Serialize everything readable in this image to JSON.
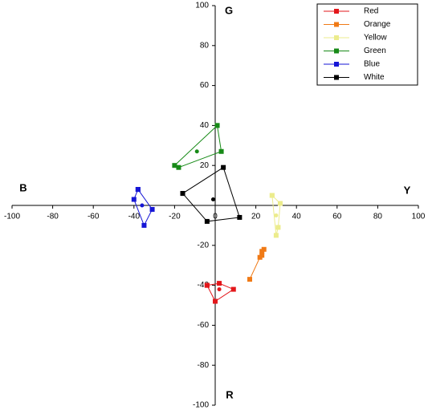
{
  "chart_data": {
    "type": "scatter",
    "axis_labels": {
      "top": "G",
      "bottom": "R",
      "left": "B",
      "right": "Y"
    },
    "xlim": [
      -100,
      100
    ],
    "ylim": [
      -100,
      100
    ],
    "xticks": [
      -100,
      -80,
      -60,
      -40,
      -20,
      0,
      20,
      40,
      60,
      80,
      100
    ],
    "yticks": [
      -100,
      -80,
      -60,
      -40,
      -20,
      20,
      40,
      60,
      80,
      100
    ],
    "legend": "top-right",
    "series": [
      {
        "name": "Red",
        "color": "#e3171b",
        "x": [
          -4,
          2,
          9,
          0,
          -4
        ],
        "y": [
          -40,
          -39,
          -42,
          -48,
          -40
        ],
        "center": [
          2,
          -42
        ]
      },
      {
        "name": "Orange",
        "color": "#f07a16",
        "x": [
          17,
          22,
          23,
          24,
          23
        ],
        "y": [
          -37,
          -26,
          -25,
          -22,
          -23
        ],
        "center": [
          22,
          -26
        ]
      },
      {
        "name": "Yellow",
        "color": "#ecec8c",
        "x": [
          28,
          32,
          31,
          30,
          28
        ],
        "y": [
          5,
          1,
          -11,
          -15,
          5
        ],
        "center": [
          30,
          -5
        ]
      },
      {
        "name": "Green",
        "color": "#178a17",
        "x": [
          1,
          3,
          -18,
          -20,
          1
        ],
        "y": [
          40,
          27,
          19,
          20,
          40
        ],
        "center": [
          -9,
          27
        ]
      },
      {
        "name": "Blue",
        "color": "#1616d6",
        "x": [
          -38,
          -31,
          -35,
          -40,
          -38
        ],
        "y": [
          8,
          -2,
          -10,
          3,
          8
        ],
        "center": [
          -36,
          0
        ]
      },
      {
        "name": "White",
        "color": "#000000",
        "x": [
          -16,
          4,
          12,
          -4,
          -16
        ],
        "y": [
          6,
          19,
          -6,
          -8,
          6
        ],
        "center": [
          -1,
          3
        ]
      }
    ]
  }
}
